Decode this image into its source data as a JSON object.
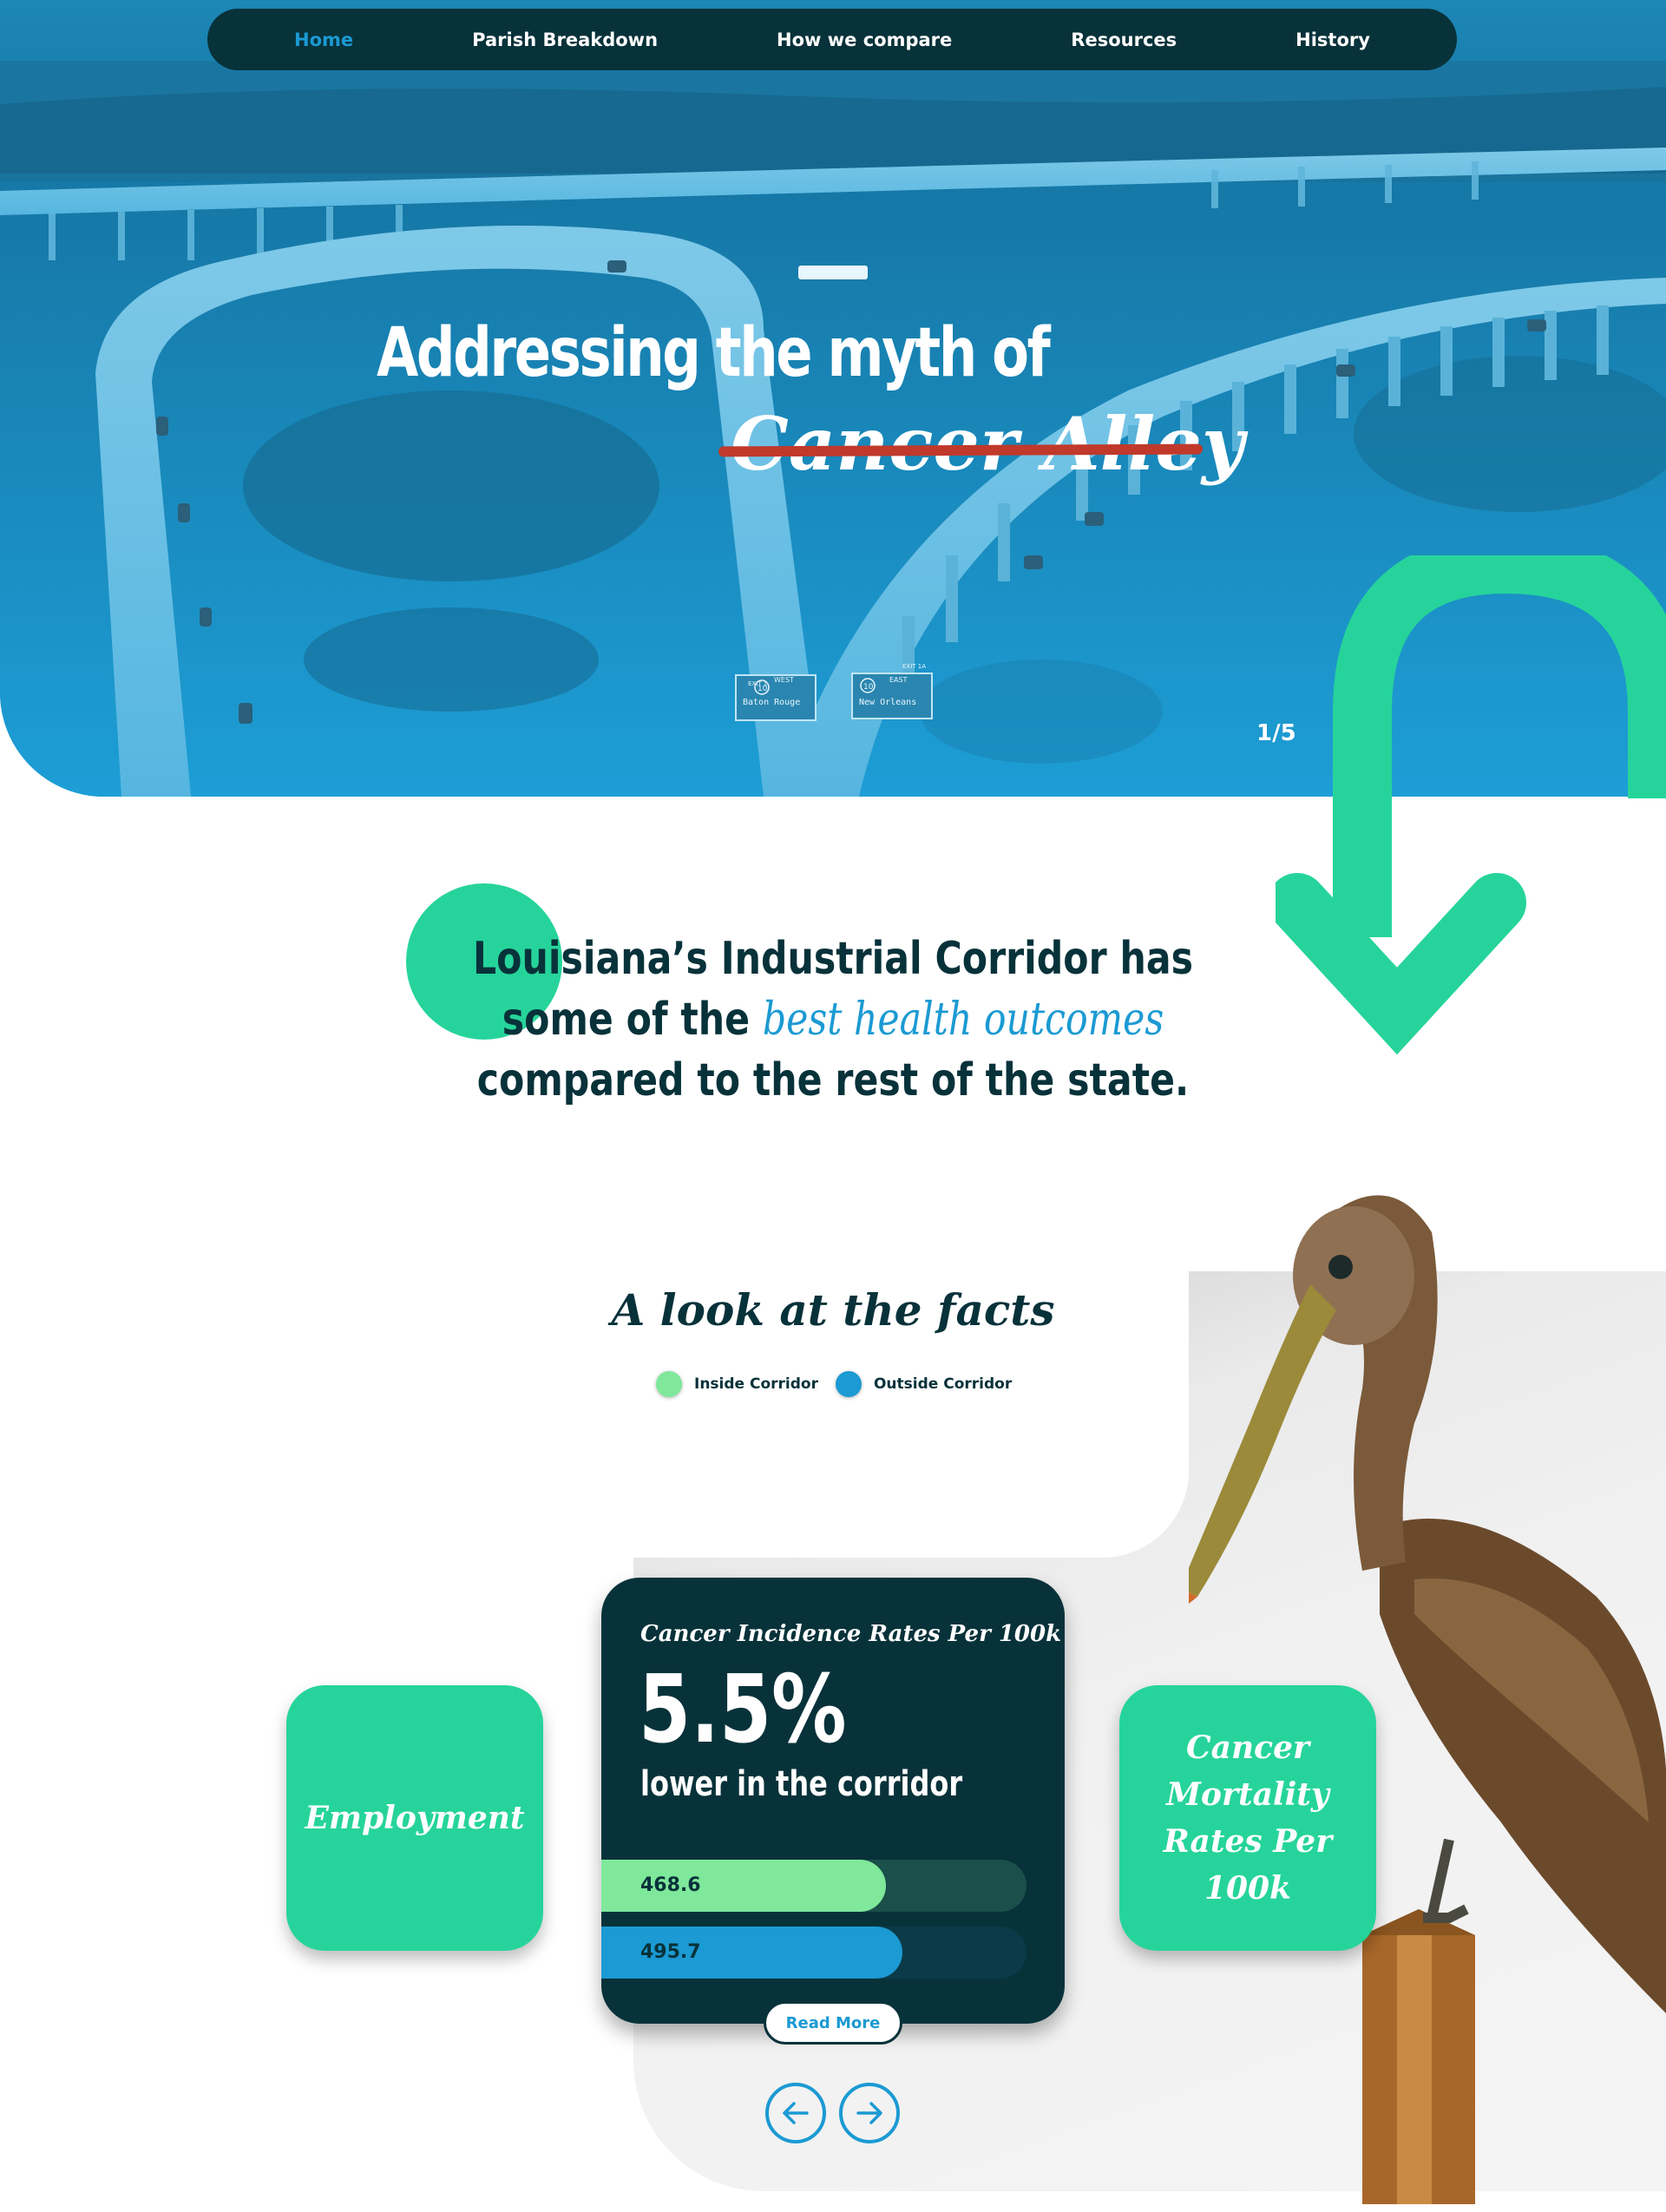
{
  "nav": {
    "items": [
      {
        "label": "Home",
        "active": true
      },
      {
        "label": "Parish Breakdown"
      },
      {
        "label": "How we compare"
      },
      {
        "label": "Resources"
      },
      {
        "label": "History"
      }
    ]
  },
  "hero": {
    "title": "Addressing the myth of",
    "struck_phrase": "Cancer Alley",
    "slide_counter": "1/5",
    "road_signs": [
      {
        "exit": "EXIT 1",
        "route": "10",
        "direction": "WEST",
        "city": "Baton Rouge"
      },
      {
        "exit": "EXIT 1A",
        "route": "10",
        "direction": "EAST",
        "city": "New Orleans"
      }
    ]
  },
  "intro": {
    "line1": "Louisiana’s Industrial Corridor has",
    "line2_pre": "some of the ",
    "line2_highlight": "best health outcomes",
    "line3": "compared to the rest of the state."
  },
  "facts": {
    "title": "A look at the facts",
    "legend": [
      {
        "label": "Inside Corridor",
        "color": "#7fe89a"
      },
      {
        "label": "Outside Corridor",
        "color": "#1b9ad3"
      }
    ],
    "left_card": "Employment",
    "right_card": "Cancer Mortality Rates Per 100k",
    "main_card": {
      "title": "Cancer Incidence Rates Per 100k",
      "stat": "5.5%",
      "subtitle": "lower in the corridor",
      "bars": [
        {
          "label": "468.6",
          "value": 468.6,
          "max": 700
        },
        {
          "label": "495.7",
          "value": 495.7,
          "max": 700
        }
      ],
      "read_more": "Read More"
    }
  },
  "colors": {
    "navy": "#08323a",
    "blue": "#1b9ad3",
    "green": "#26d49b",
    "light_green": "#7fe89a",
    "strike_red": "#c0392b"
  },
  "icons": {
    "prev": "arrow-left-icon",
    "next": "arrow-right-icon",
    "scroll": "curved-arrow-down-icon"
  }
}
